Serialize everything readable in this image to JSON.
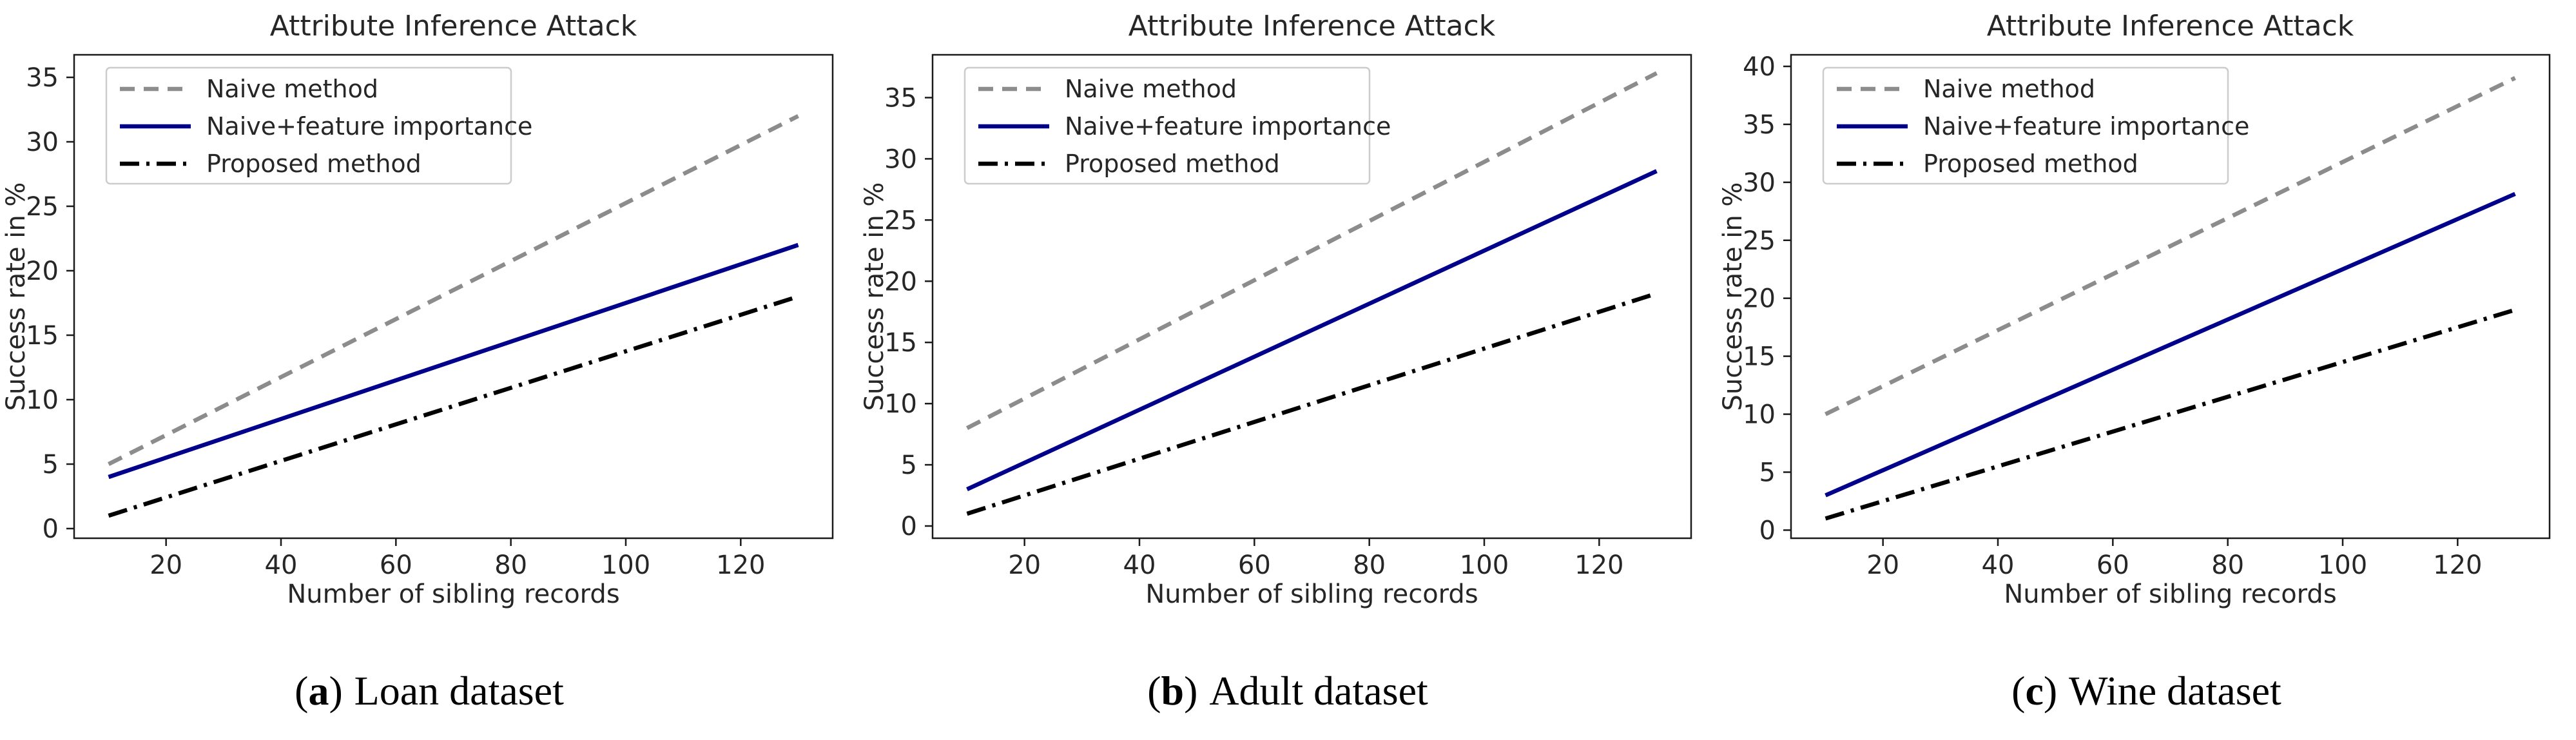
{
  "figure": {
    "background": "#ffffff",
    "frame_color": "#1a1a1a",
    "text_color": "#262626"
  },
  "chart_data": [
    {
      "type": "line",
      "title": "Attribute Inference Attack",
      "xlabel": "Number of sibling records",
      "ylabel": "Success rate in %",
      "x": [
        10,
        130
      ],
      "xlim": [
        4,
        136
      ],
      "ylim": [
        -0.75,
        36.75
      ],
      "xticks": [
        20,
        40,
        60,
        80,
        100,
        120
      ],
      "yticks": [
        0,
        5,
        10,
        15,
        20,
        25,
        30,
        35
      ],
      "grid": false,
      "legend_position": "upper left",
      "series": [
        {
          "name": "Naive method",
          "values": [
            5,
            32
          ],
          "color": "#8c8c8c",
          "dash": "dashed",
          "linewidth": 6.5
        },
        {
          "name": "Naive+feature importance",
          "values": [
            4,
            22
          ],
          "color": "#00008b",
          "dash": "solid",
          "linewidth": 6.5
        },
        {
          "name": "Proposed method",
          "values": [
            1,
            18
          ],
          "color": "#000000",
          "dash": "dashdot",
          "linewidth": 6.5
        }
      ],
      "caption": {
        "open": "(",
        "letter": "a",
        "close": ")",
        "text": "Loan dataset"
      }
    },
    {
      "type": "line",
      "title": "Attribute Inference Attack",
      "xlabel": "Number of sibling records",
      "ylabel": "Success rate in %",
      "x": [
        10,
        130
      ],
      "xlim": [
        4,
        136
      ],
      "ylim": [
        -1,
        38.5
      ],
      "xticks": [
        20,
        40,
        60,
        80,
        100,
        120
      ],
      "yticks": [
        0,
        5,
        10,
        15,
        20,
        25,
        30,
        35
      ],
      "grid": false,
      "legend_position": "upper left",
      "series": [
        {
          "name": "Naive method",
          "values": [
            8,
            37
          ],
          "color": "#8c8c8c",
          "dash": "dashed",
          "linewidth": 6.5
        },
        {
          "name": "Naive+feature importance",
          "values": [
            3,
            29
          ],
          "color": "#00008b",
          "dash": "solid",
          "linewidth": 6.5
        },
        {
          "name": "Proposed method",
          "values": [
            1,
            19
          ],
          "color": "#000000",
          "dash": "dashdot",
          "linewidth": 6.5
        }
      ],
      "caption": {
        "open": "(",
        "letter": "b",
        "close": ")",
        "text": "Adult dataset"
      }
    },
    {
      "type": "line",
      "title": "Attribute Inference Attack",
      "xlabel": "Number of sibling records",
      "ylabel": "Success rate in %",
      "x": [
        10,
        130
      ],
      "xlim": [
        4,
        136
      ],
      "ylim": [
        -0.7,
        41
      ],
      "xticks": [
        20,
        40,
        60,
        80,
        100,
        120
      ],
      "yticks": [
        0,
        5,
        10,
        15,
        20,
        25,
        30,
        35,
        40
      ],
      "grid": false,
      "legend_position": "upper left",
      "series": [
        {
          "name": "Naive method",
          "values": [
            10,
            39
          ],
          "color": "#8c8c8c",
          "dash": "dashed",
          "linewidth": 6.5
        },
        {
          "name": "Naive+feature importance",
          "values": [
            3,
            29
          ],
          "color": "#00008b",
          "dash": "solid",
          "linewidth": 6.5
        },
        {
          "name": "Proposed method",
          "values": [
            1,
            19
          ],
          "color": "#000000",
          "dash": "dashdot",
          "linewidth": 6.5
        }
      ],
      "caption": {
        "open": "(",
        "letter": "c",
        "close": ")",
        "text": "Wine dataset"
      }
    }
  ]
}
